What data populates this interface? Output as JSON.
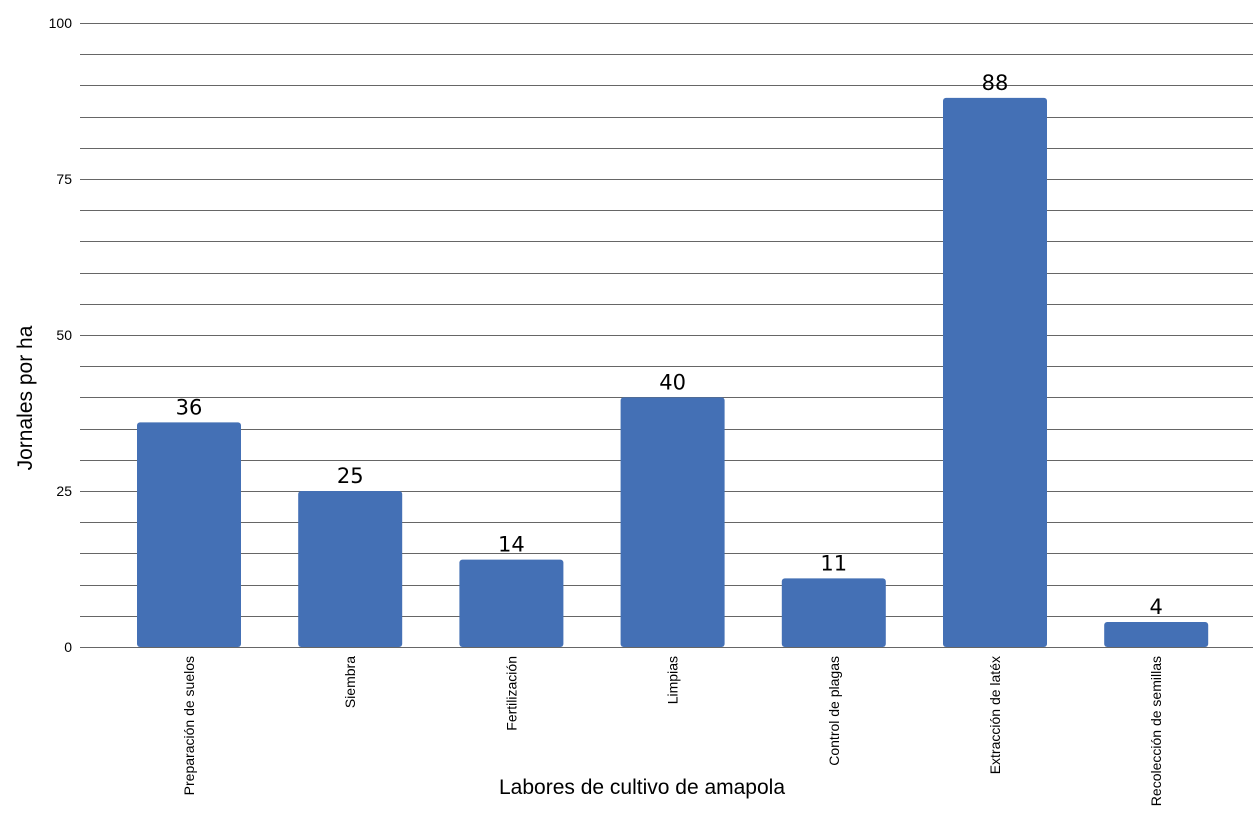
{
  "chart_data": {
    "type": "bar",
    "categories": [
      "Preparación de suelos",
      "Siembra",
      "Fertilización",
      "Limpias",
      "Control de plagas",
      "Extracción de latéx",
      "Recolección de semillas"
    ],
    "values": [
      36,
      25,
      14,
      40,
      11,
      88,
      4
    ],
    "data_labels": [
      "36",
      "25",
      "14",
      "40",
      "11",
      "88",
      "4"
    ],
    "xlabel": "Labores de cultivo de amapola",
    "ylabel": "Jornales por ha",
    "ylim": [
      0,
      100
    ],
    "yticks": [
      0,
      25,
      50,
      75,
      100
    ],
    "ytick_labels": [
      "0",
      "25",
      "50",
      "75",
      "100"
    ],
    "grid_step": 5,
    "grid": true,
    "legend": false,
    "colors": {
      "bar": "#4470b5",
      "grid": "#666666"
    }
  }
}
